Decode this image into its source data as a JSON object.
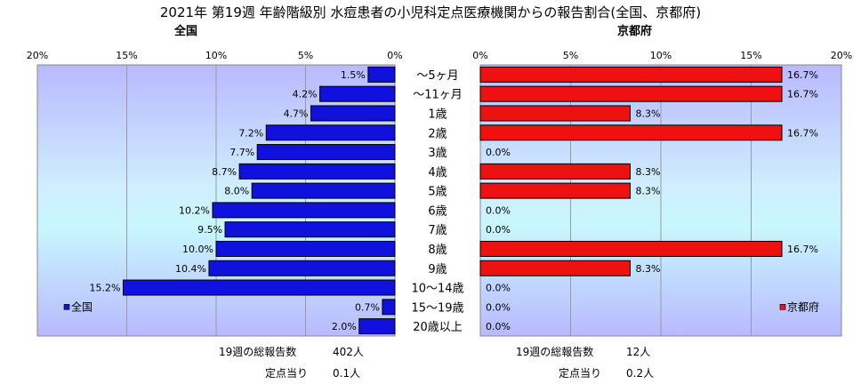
{
  "title": "2021年 第19週 年齢階級別 水痘患者の小児科定点医療機関からの報告割合(全国、京都府)",
  "chart_data": [
    {
      "type": "bar",
      "orientation": "horizontal",
      "subtitle": "全国",
      "legend": "全国",
      "legend_position": "bottom-left",
      "bar_color": "#1111dd",
      "x_reversed": true,
      "xlim": [
        0,
        20
      ],
      "xticks": [
        "0%",
        "5%",
        "10%",
        "15%",
        "20%"
      ],
      "categories": [
        "～5ヶ月",
        "～11ヶ月",
        "1歳",
        "2歳",
        "3歳",
        "4歳",
        "5歳",
        "6歳",
        "7歳",
        "8歳",
        "9歳",
        "10～14歳",
        "15～19歳",
        "20歳以上"
      ],
      "values": [
        1.5,
        4.2,
        4.7,
        7.2,
        7.7,
        8.7,
        8.0,
        10.2,
        9.5,
        10.0,
        10.4,
        15.2,
        0.7,
        2.0
      ],
      "labels": [
        "1.5%",
        "4.2%",
        "4.7%",
        "7.2%",
        "7.7%",
        "8.7%",
        "8.0%",
        "10.2%",
        "9.5%",
        "10.0%",
        "10.4%",
        "15.2%",
        "0.7%",
        "2.0%"
      ],
      "grid": true
    },
    {
      "type": "bar",
      "orientation": "horizontal",
      "subtitle": "京都府",
      "legend": "京都府",
      "legend_position": "bottom-right",
      "bar_color": "#ee1111",
      "x_reversed": false,
      "xlim": [
        0,
        20
      ],
      "xticks": [
        "0%",
        "5%",
        "10%",
        "15%",
        "20%"
      ],
      "categories": [
        "～5ヶ月",
        "～11ヶ月",
        "1歳",
        "2歳",
        "3歳",
        "4歳",
        "5歳",
        "6歳",
        "7歳",
        "8歳",
        "9歳",
        "10～14歳",
        "15～19歳",
        "20歳以上"
      ],
      "values": [
        16.7,
        16.7,
        8.3,
        16.7,
        0.0,
        8.3,
        8.3,
        0.0,
        0.0,
        16.7,
        8.3,
        0.0,
        0.0,
        0.0
      ],
      "labels": [
        "16.7%",
        "16.7%",
        "8.3%",
        "16.7%",
        "0.0%",
        "8.3%",
        "8.3%",
        "0.0%",
        "0.0%",
        "16.7%",
        "8.3%",
        "0.0%",
        "0.0%",
        "0.0%"
      ],
      "grid": true
    }
  ],
  "footer": {
    "national": {
      "total_label": "19週の総報告数",
      "total_value": "402人",
      "per_label": "定点当り",
      "per_value": "0.1人"
    },
    "kyoto": {
      "total_label": "19週の総報告数",
      "total_value": "12人",
      "per_label": "定点当り",
      "per_value": "0.2人"
    }
  }
}
